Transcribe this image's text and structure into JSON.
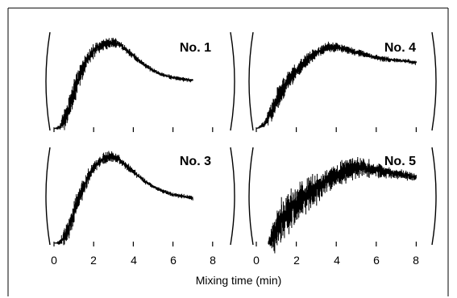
{
  "chart_data": [
    {
      "type": "line",
      "panel_label": "No. 1",
      "x": [
        0,
        0.3,
        0.6,
        0.9,
        1.2,
        1.5,
        1.8,
        2.1,
        2.4,
        2.7,
        3.0,
        3.3,
        3.6,
        3.9,
        4.2,
        4.6,
        5.0,
        5.5,
        6.0,
        6.5,
        7.0
      ],
      "y": [
        0.0,
        0.02,
        0.15,
        0.35,
        0.55,
        0.72,
        0.84,
        0.92,
        0.96,
        0.98,
        1.0,
        0.97,
        0.92,
        0.86,
        0.8,
        0.73,
        0.67,
        0.62,
        0.59,
        0.57,
        0.56
      ],
      "noise": [
        0.0,
        0.05,
        0.18,
        0.2,
        0.16,
        0.13,
        0.1,
        0.09,
        0.08,
        0.07,
        0.07,
        0.06,
        0.05,
        0.05,
        0.04,
        0.04,
        0.03,
        0.03,
        0.03,
        0.03,
        0.03
      ],
      "xlim": [
        0,
        8
      ]
    },
    {
      "type": "line",
      "panel_label": "No. 4",
      "x": [
        0,
        0.4,
        0.8,
        1.2,
        1.6,
        2.0,
        2.4,
        2.8,
        3.2,
        3.6,
        4.0,
        4.5,
        5.0,
        5.5,
        6.0,
        6.5,
        7.0,
        7.5,
        8.0
      ],
      "y": [
        0.0,
        0.05,
        0.22,
        0.4,
        0.55,
        0.67,
        0.76,
        0.84,
        0.9,
        0.94,
        0.94,
        0.91,
        0.88,
        0.85,
        0.82,
        0.8,
        0.79,
        0.78,
        0.76
      ],
      "noise": [
        0.0,
        0.05,
        0.16,
        0.16,
        0.13,
        0.12,
        0.1,
        0.08,
        0.07,
        0.07,
        0.06,
        0.05,
        0.05,
        0.04,
        0.04,
        0.04,
        0.03,
        0.03,
        0.03
      ],
      "xlim": [
        0,
        8
      ]
    },
    {
      "type": "line",
      "panel_label": "No. 3",
      "x": [
        0,
        0.3,
        0.6,
        0.9,
        1.2,
        1.5,
        1.8,
        2.1,
        2.4,
        2.7,
        3.0,
        3.3,
        3.6,
        3.9,
        4.2,
        4.6,
        5.0,
        5.5,
        6.0,
        6.5,
        7.0
      ],
      "y": [
        0.0,
        0.01,
        0.1,
        0.28,
        0.48,
        0.66,
        0.8,
        0.9,
        0.96,
        0.99,
        1.0,
        0.96,
        0.9,
        0.84,
        0.78,
        0.71,
        0.65,
        0.6,
        0.56,
        0.54,
        0.52
      ],
      "noise": [
        0.0,
        0.04,
        0.14,
        0.16,
        0.15,
        0.12,
        0.1,
        0.09,
        0.08,
        0.08,
        0.07,
        0.06,
        0.05,
        0.05,
        0.04,
        0.04,
        0.03,
        0.03,
        0.03,
        0.03,
        0.03
      ],
      "xlim": [
        0,
        8
      ]
    },
    {
      "type": "line",
      "panel_label": "No. 5",
      "x": [
        0.6,
        0.9,
        1.2,
        1.6,
        2.0,
        2.4,
        2.8,
        3.2,
        3.6,
        4.0,
        4.4,
        4.8,
        5.2,
        5.6,
        6.0,
        6.5,
        7.0,
        7.5,
        8.0
      ],
      "y": [
        0.0,
        0.12,
        0.25,
        0.36,
        0.45,
        0.54,
        0.6,
        0.66,
        0.72,
        0.78,
        0.83,
        0.86,
        0.87,
        0.86,
        0.84,
        0.82,
        0.8,
        0.78,
        0.76
      ],
      "noise": [
        0.04,
        0.28,
        0.3,
        0.28,
        0.26,
        0.24,
        0.22,
        0.2,
        0.18,
        0.17,
        0.16,
        0.15,
        0.14,
        0.12,
        0.1,
        0.08,
        0.07,
        0.06,
        0.06
      ],
      "xlim": [
        0,
        8
      ]
    }
  ],
  "x_ticks": [
    "0",
    "2",
    "4",
    "6",
    "8"
  ],
  "xlabel": "Mixing time (min)"
}
